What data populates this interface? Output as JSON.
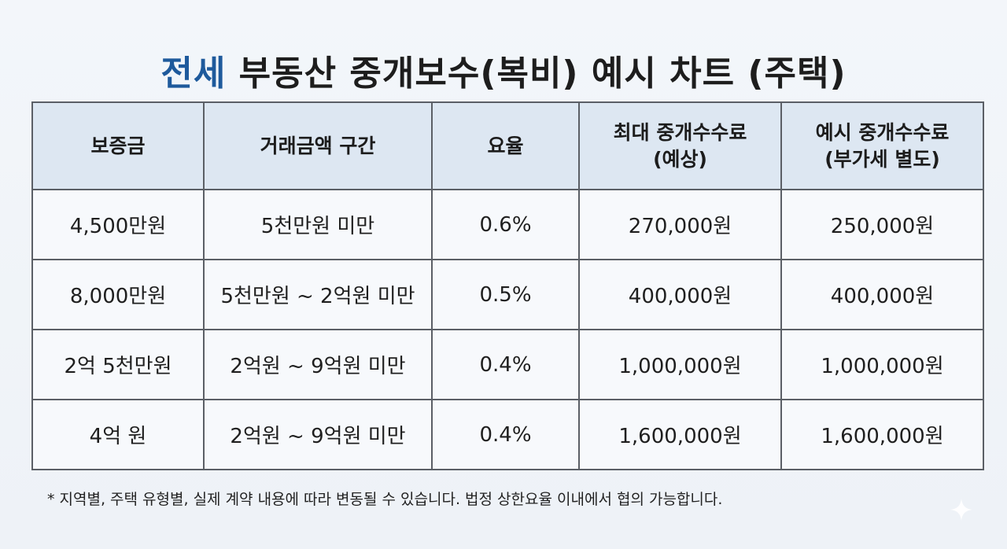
{
  "title": {
    "accent": "전세",
    "rest": " 부동산 중개보수(복비) 예시 차트 (주택)"
  },
  "table": {
    "headers": [
      [
        "보증금"
      ],
      [
        "거래금액 구간"
      ],
      [
        "요율"
      ],
      [
        "최대 중개수수료",
        "(예상)"
      ],
      [
        "예시 중개수수료",
        "(부가세 별도)"
      ]
    ],
    "rows": [
      [
        "4,500만원",
        "5천만원 미만",
        "0.6%",
        "270,000원",
        "250,000원"
      ],
      [
        "8,000만원",
        "5천만원 ~ 2억원 미만",
        "0.5%",
        "400,000원",
        "400,000원"
      ],
      [
        "2억 5천만원",
        "2억원 ~ 9억원 미만",
        "0.4%",
        "1,000,000원",
        "1,000,000원"
      ],
      [
        "4억 원",
        "2억원 ~ 9억원 미만",
        "0.4%",
        "1,600,000원",
        "1,600,000원"
      ]
    ]
  },
  "footnote": "* 지역별, 주택 유형별, 실제 계약 내용에 따라 변동될 수 있습니다. 법정 상한요율 이내에서 협의 가능합니다.",
  "colors": {
    "accent": "#1e5a9c",
    "header_bg": "#dde7f2",
    "border": "#5b5f66"
  },
  "icons": {
    "corner": "sparkle-icon"
  }
}
